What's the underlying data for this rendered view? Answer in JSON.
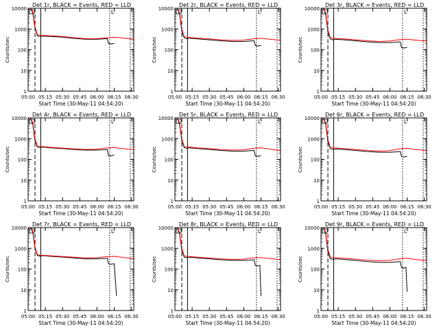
{
  "chart_data": {
    "type": "line",
    "yscale": "log",
    "ylim": [
      1,
      10000
    ],
    "ylabel": "Counts/sec",
    "xlabel": "Start Time (30-May-11 04:54:20)",
    "xlim": [
      "05:00",
      "06:32"
    ],
    "x_ticks": [
      "05:00",
      "05:15",
      "05:30",
      "05:45",
      "06:00",
      "06:15",
      "06:30"
    ],
    "y_ticks": [
      "1",
      "10",
      "100",
      "1000",
      "10000"
    ],
    "marker_text": "L",
    "colors": {
      "events": "#000000",
      "lld": "#ff0000",
      "axes": "#000000"
    },
    "vertical_lines": [
      {
        "time": "05:06",
        "style": "dashed"
      },
      {
        "time": "05:11",
        "style": "solid"
      },
      {
        "time": "06:11",
        "style": "dotted"
      },
      {
        "time": "06:29",
        "style": "dotted"
      }
    ],
    "panels": [
      {
        "title": "Det 1r, BLACK = Events, RED = LLD",
        "series": [
          {
            "name": "Events",
            "x": [
              "05:02",
              "05:04",
              "05:06",
              "05:08",
              "05:10",
              "05:13",
              "05:20",
              "05:30",
              "05:40",
              "05:50",
              "06:00",
              "06:05",
              "06:09",
              "06:10",
              "06:12",
              "06:15"
            ],
            "y": [
              10000,
              6000,
              1100,
              470,
              430,
              450,
              430,
              400,
              350,
              320,
              320,
              330,
              340,
              200,
              190,
              200
            ]
          },
          {
            "name": "LLD",
            "x": [
              "05:02",
              "05:04",
              "05:06",
              "05:08",
              "05:10",
              "05:13",
              "05:20",
              "05:30",
              "05:40",
              "05:50",
              "06:00",
              "06:05",
              "06:10",
              "06:15",
              "06:20",
              "06:25",
              "06:32"
            ],
            "y": [
              10000,
              7000,
              1300,
              520,
              500,
              490,
              470,
              430,
              380,
              340,
              340,
              360,
              380,
              400,
              380,
              350,
              320
            ]
          }
        ]
      },
      {
        "title": "Det 2r, BLACK = Events, RED = LLD",
        "series": [
          {
            "name": "Events",
            "x": [
              "05:02",
              "05:04",
              "05:06",
              "05:08",
              "05:10",
              "05:13",
              "05:20",
              "05:30",
              "05:40",
              "05:50",
              "06:00",
              "06:05",
              "06:09",
              "06:10",
              "06:12",
              "06:15"
            ],
            "y": [
              10000,
              5000,
              800,
              380,
              340,
              360,
              330,
              300,
              270,
              250,
              250,
              260,
              270,
              160,
              150,
              160
            ]
          },
          {
            "name": "LLD",
            "x": [
              "05:02",
              "05:04",
              "05:06",
              "05:08",
              "05:10",
              "05:13",
              "05:20",
              "05:30",
              "05:40",
              "05:50",
              "06:00",
              "06:05",
              "06:10",
              "06:15",
              "06:20",
              "06:25",
              "06:32"
            ],
            "y": [
              10000,
              6000,
              1000,
              420,
              400,
              390,
              360,
              330,
              300,
              280,
              290,
              320,
              340,
              350,
              330,
              310,
              280
            ]
          }
        ]
      },
      {
        "title": "Det 3r, BLACK = Events, RED = LLD",
        "series": [
          {
            "name": "Events",
            "x": [
              "05:02",
              "05:04",
              "05:06",
              "05:08",
              "05:10",
              "05:13",
              "05:20",
              "05:30",
              "05:40",
              "05:50",
              "06:00",
              "06:05",
              "06:09",
              "06:10",
              "06:12",
              "06:15"
            ],
            "y": [
              10000,
              5000,
              700,
              330,
              300,
              320,
              300,
              270,
              240,
              220,
              220,
              230,
              240,
              130,
              120,
              130
            ]
          },
          {
            "name": "LLD",
            "x": [
              "05:02",
              "05:04",
              "05:06",
              "05:08",
              "05:10",
              "05:13",
              "05:20",
              "05:30",
              "05:40",
              "05:50",
              "06:00",
              "06:05",
              "06:10",
              "06:15",
              "06:20",
              "06:25",
              "06:32"
            ],
            "y": [
              10000,
              6000,
              900,
              380,
              360,
              350,
              330,
              300,
              270,
              250,
              260,
              290,
              310,
              320,
              300,
              280,
              260
            ]
          }
        ]
      },
      {
        "title": "Det 4r, BLACK = Events, RED = LLD",
        "series": [
          {
            "name": "Events",
            "x": [
              "05:02",
              "05:04",
              "05:06",
              "05:08",
              "05:10",
              "05:13",
              "05:20",
              "05:30",
              "05:40",
              "05:50",
              "06:00",
              "06:05",
              "06:09",
              "06:10",
              "06:12",
              "06:15"
            ],
            "y": [
              10000,
              5000,
              800,
              400,
              370,
              390,
              360,
              330,
              300,
              280,
              280,
              290,
              300,
              150,
              150,
              160
            ]
          },
          {
            "name": "LLD",
            "x": [
              "05:02",
              "05:04",
              "05:06",
              "05:08",
              "05:10",
              "05:13",
              "05:20",
              "05:30",
              "05:40",
              "05:50",
              "06:00",
              "06:05",
              "06:10",
              "06:15",
              "06:20",
              "06:25",
              "06:32"
            ],
            "y": [
              10000,
              6000,
              1000,
              440,
              420,
              410,
              380,
              350,
              320,
              300,
              310,
              340,
              360,
              370,
              340,
              320,
              290
            ]
          }
        ]
      },
      {
        "title": "Det 5r, BLACK = Events, RED = LLD",
        "series": [
          {
            "name": "Events",
            "x": [
              "05:02",
              "05:04",
              "05:06",
              "05:08",
              "05:10",
              "05:13",
              "05:20",
              "05:30",
              "05:40",
              "05:50",
              "06:00",
              "06:05",
              "06:09",
              "06:10",
              "06:12",
              "06:15"
            ],
            "y": [
              10000,
              5000,
              800,
              380,
              340,
              360,
              330,
              300,
              270,
              250,
              250,
              260,
              270,
              150,
              140,
              150
            ]
          },
          {
            "name": "LLD",
            "x": [
              "05:02",
              "05:04",
              "05:06",
              "05:08",
              "05:10",
              "05:13",
              "05:20",
              "05:30",
              "05:40",
              "05:50",
              "06:00",
              "06:05",
              "06:10",
              "06:15",
              "06:20",
              "06:25",
              "06:32"
            ],
            "y": [
              10000,
              6000,
              1000,
              420,
              400,
              390,
              360,
              330,
              300,
              280,
              290,
              320,
              350,
              360,
              330,
              300,
              260
            ]
          }
        ]
      },
      {
        "title": "Det 6r, BLACK = Events, RED = LLD",
        "series": [
          {
            "name": "Events",
            "x": [
              "05:02",
              "05:04",
              "05:06",
              "05:08",
              "05:10",
              "05:13",
              "05:20",
              "05:30",
              "05:40",
              "05:50",
              "06:00",
              "06:05",
              "06:09",
              "06:10",
              "06:12",
              "06:15"
            ],
            "y": [
              10000,
              5000,
              700,
              340,
              300,
              320,
              300,
              270,
              240,
              220,
              220,
              230,
              240,
              140,
              130,
              140
            ]
          },
          {
            "name": "LLD",
            "x": [
              "05:02",
              "05:04",
              "05:06",
              "05:08",
              "05:10",
              "05:13",
              "05:20",
              "05:30",
              "05:40",
              "05:50",
              "06:00",
              "06:05",
              "06:10",
              "06:15",
              "06:20",
              "06:25",
              "06:32"
            ],
            "y": [
              10000,
              6000,
              900,
              380,
              360,
              350,
              330,
              300,
              270,
              250,
              260,
              300,
              330,
              340,
              310,
              290,
              260
            ]
          }
        ]
      },
      {
        "title": "Det 7r, BLACK = Events, RED = LLD",
        "series": [
          {
            "name": "Events",
            "x": [
              "05:02",
              "05:04",
              "05:06",
              "05:08",
              "05:10",
              "05:13",
              "05:20",
              "05:30",
              "05:40",
              "05:50",
              "06:00",
              "06:05",
              "06:09",
              "06:10",
              "06:12",
              "06:15",
              "06:16",
              "06:17"
            ],
            "y": [
              10000,
              6000,
              1000,
              450,
              420,
              440,
              410,
              380,
              340,
              310,
              310,
              320,
              330,
              180,
              170,
              180,
              30,
              5
            ]
          },
          {
            "name": "LLD",
            "x": [
              "05:02",
              "05:04",
              "05:06",
              "05:08",
              "05:10",
              "05:13",
              "05:20",
              "05:30",
              "05:40",
              "05:50",
              "06:00",
              "06:05",
              "06:10",
              "06:15",
              "06:20",
              "06:25",
              "06:32"
            ],
            "y": [
              10000,
              7000,
              1200,
              500,
              470,
              460,
              430,
              400,
              370,
              340,
              350,
              380,
              400,
              410,
              380,
              350,
              310
            ]
          }
        ]
      },
      {
        "title": "Det 8r, BLACK = Events, RED = LLD",
        "series": [
          {
            "name": "Events",
            "x": [
              "05:02",
              "05:04",
              "05:06",
              "05:08",
              "05:10",
              "05:13",
              "05:20",
              "05:30",
              "05:40",
              "05:50",
              "06:00",
              "06:05",
              "06:09",
              "06:10",
              "06:12",
              "06:14",
              "06:15"
            ],
            "y": [
              10000,
              5000,
              800,
              380,
              350,
              370,
              340,
              310,
              280,
              260,
              260,
              270,
              280,
              150,
              140,
              150,
              5
            ]
          },
          {
            "name": "LLD",
            "x": [
              "05:02",
              "05:04",
              "05:06",
              "05:08",
              "05:10",
              "05:13",
              "05:20",
              "05:30",
              "05:40",
              "05:50",
              "06:00",
              "06:05",
              "06:10",
              "06:15",
              "06:20",
              "06:25",
              "06:32"
            ],
            "y": [
              10000,
              6000,
              1000,
              430,
              410,
              400,
              370,
              340,
              310,
              290,
              300,
              330,
              350,
              360,
              330,
              310,
              280
            ]
          }
        ]
      },
      {
        "title": "Det 9r, BLACK = Events, RED = LLD",
        "series": [
          {
            "name": "Events",
            "x": [
              "05:02",
              "05:04",
              "05:06",
              "05:08",
              "05:10",
              "05:13",
              "05:20",
              "05:30",
              "05:40",
              "05:50",
              "06:00",
              "06:05",
              "06:09",
              "06:10",
              "06:12",
              "06:14",
              "06:15"
            ],
            "y": [
              10000,
              5000,
              700,
              320,
              290,
              310,
              290,
              260,
              230,
              210,
              210,
              220,
              230,
              120,
              110,
              120,
              8
            ]
          },
          {
            "name": "LLD",
            "x": [
              "05:02",
              "05:04",
              "05:06",
              "05:08",
              "05:10",
              "05:13",
              "05:20",
              "05:30",
              "05:40",
              "05:50",
              "06:00",
              "06:05",
              "06:10",
              "06:15",
              "06:20",
              "06:25",
              "06:32"
            ],
            "y": [
              10000,
              6000,
              900,
              380,
              360,
              350,
              330,
              300,
              270,
              250,
              260,
              290,
              320,
              330,
              300,
              280,
              250
            ]
          }
        ]
      }
    ]
  }
}
